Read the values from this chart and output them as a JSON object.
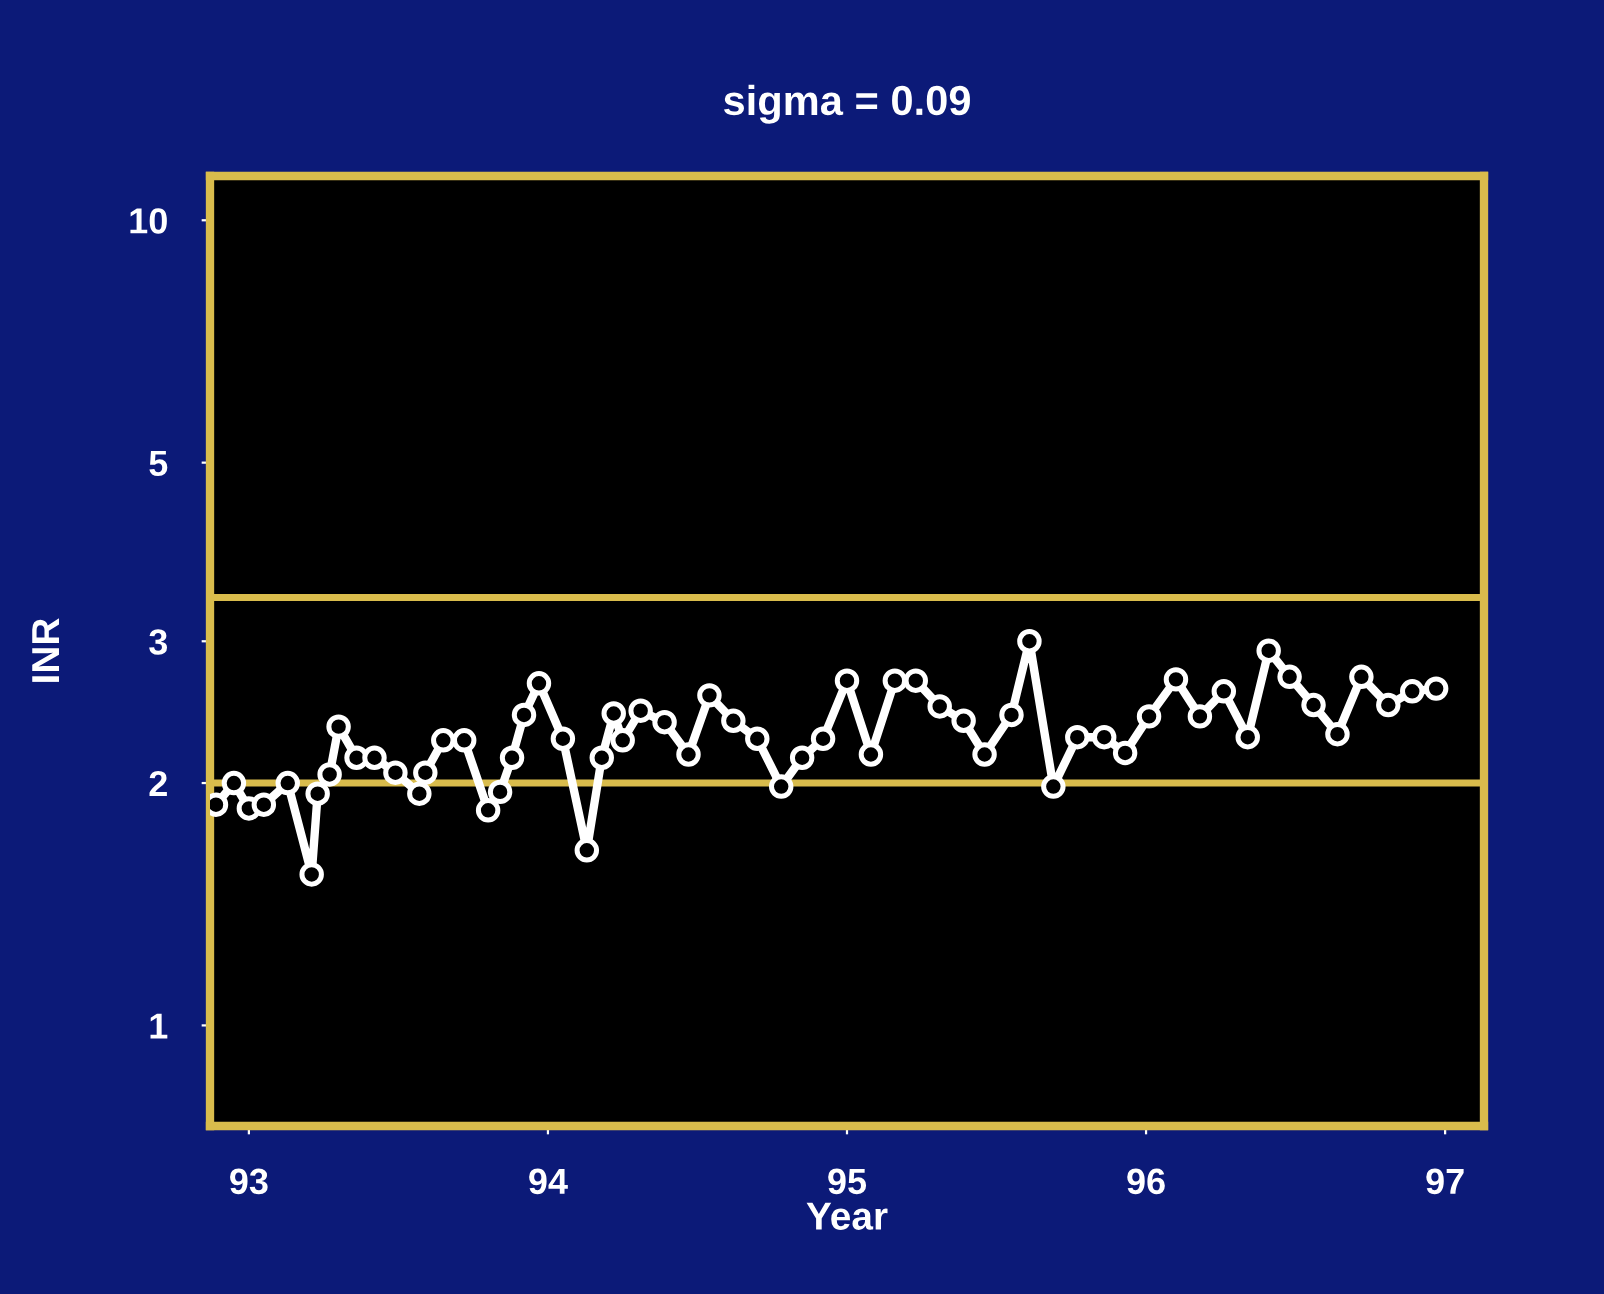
{
  "chart_data": {
    "type": "line",
    "title": "sigma = 0.09",
    "xlabel": "Year",
    "ylabel": "INR",
    "log": "y",
    "xlim": [
      92.87,
      97.13
    ],
    "xticks": [
      93,
      94,
      95,
      96,
      97
    ],
    "ylim": [
      0.75,
      11.35
    ],
    "yticks": [
      1,
      2,
      3,
      5,
      10
    ],
    "grid": false,
    "marker": "circle",
    "line_style": "solid",
    "ref_lines": [
      {
        "axis": "y",
        "value": 3.4,
        "color": "#d9bc4c"
      },
      {
        "axis": "y",
        "value": 2.0,
        "color": "#d9bc4c"
      }
    ],
    "series": [
      {
        "color": "#ffffff",
        "x": [
          92.89,
          92.95,
          93.0,
          93.05,
          93.13,
          93.21,
          93.23,
          93.27,
          93.3,
          93.36,
          93.42,
          93.49,
          93.57,
          93.59,
          93.65,
          93.72,
          93.8,
          93.84,
          93.88,
          93.92,
          93.97,
          94.05,
          94.13,
          94.18,
          94.22,
          94.25,
          94.31,
          94.39,
          94.47,
          94.54,
          94.62,
          94.7,
          94.78,
          94.85,
          94.92,
          95.0,
          95.08,
          95.16,
          95.23,
          95.31,
          95.39,
          95.46,
          95.55,
          95.61,
          95.69,
          95.77,
          95.86,
          95.93,
          96.01,
          96.1,
          96.18,
          96.26,
          96.34,
          96.41,
          96.48,
          96.56,
          96.64,
          96.72,
          96.81,
          96.89,
          96.97
        ],
        "values": [
          1.88,
          2.0,
          1.86,
          1.88,
          2.0,
          1.54,
          1.94,
          2.05,
          2.35,
          2.15,
          2.15,
          2.06,
          1.94,
          2.06,
          2.26,
          2.26,
          1.85,
          1.95,
          2.15,
          2.43,
          2.66,
          2.27,
          1.65,
          2.15,
          2.44,
          2.26,
          2.46,
          2.38,
          2.17,
          2.57,
          2.39,
          2.27,
          1.98,
          2.15,
          2.27,
          2.68,
          2.17,
          2.68,
          2.68,
          2.49,
          2.39,
          2.17,
          2.43,
          3.0,
          1.98,
          2.28,
          2.28,
          2.18,
          2.42,
          2.69,
          2.42,
          2.6,
          2.28,
          2.92,
          2.71,
          2.5,
          2.3,
          2.71,
          2.5,
          2.6,
          2.62
        ]
      }
    ]
  }
}
